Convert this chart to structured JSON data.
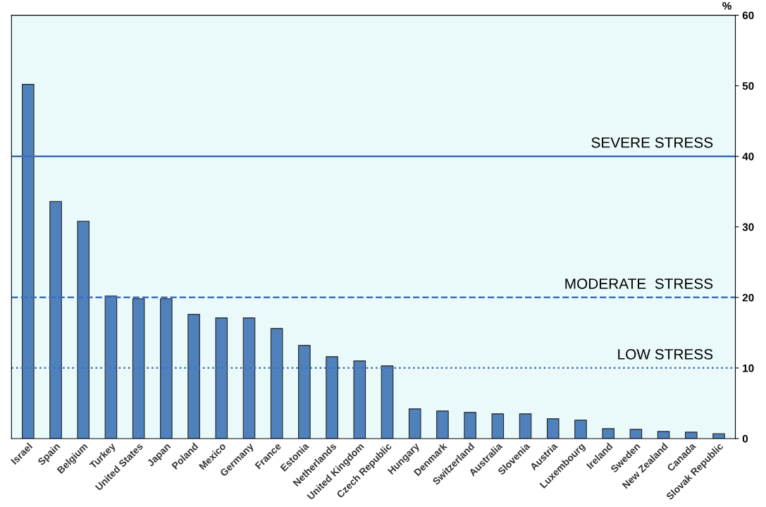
{
  "chart_data": {
    "type": "bar",
    "ylabel": "%",
    "categories": [
      "Israel",
      "Spain",
      "Belgium",
      "Turkey",
      "United States",
      "Japan",
      "Poland",
      "Mexico",
      "Germany",
      "France",
      "Estonia",
      "Netherlands",
      "United Kingdom",
      "Czech Republic",
      "Hungary",
      "Denmark",
      "Switzerland",
      "Australia",
      "Slovenia",
      "Austria",
      "Luxembourg",
      "Ireland",
      "Sweden",
      "New Zealand",
      "Canada",
      "Slovak Republic"
    ],
    "values": [
      50.2,
      33.6,
      30.8,
      20.2,
      19.8,
      19.8,
      17.6,
      17.1,
      17.1,
      15.6,
      13.2,
      11.6,
      11.0,
      10.3,
      4.2,
      3.9,
      3.7,
      3.5,
      3.5,
      2.8,
      2.6,
      1.4,
      1.3,
      1.0,
      0.9,
      0.7
    ],
    "color": "#4f81bd",
    "ylim": [
      0,
      60
    ],
    "yticks": [
      0,
      10,
      20,
      30,
      40,
      50,
      60
    ],
    "grid": false,
    "legend": false,
    "ref_lines": [
      {
        "axis": "y",
        "value": 40,
        "label": "SEVERE STRESS",
        "color": "#3f6fb5",
        "line_style": "solid"
      },
      {
        "axis": "y",
        "value": 20,
        "label": "MODERATE  STRESS",
        "color": "#3f6fb5",
        "line_style": "dashed"
      },
      {
        "axis": "y",
        "value": 10,
        "label": "LOW STRESS",
        "color": "#3f6fb5",
        "line_style": "dotted"
      }
    ]
  }
}
